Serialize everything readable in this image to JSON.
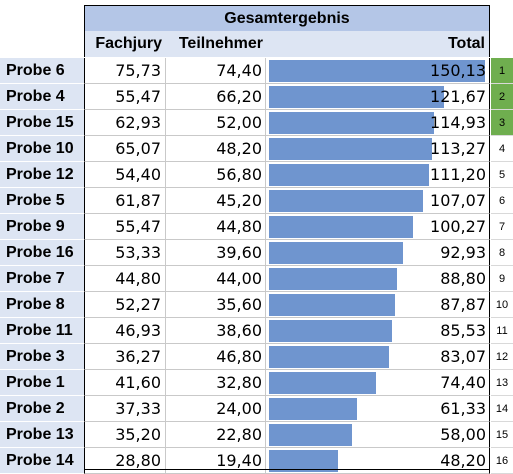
{
  "sheet": {
    "group_header": "Gesamtergebnis",
    "columns": {
      "fachjury": "Fachjury",
      "teilnehmer": "Teilnehmer",
      "total": "Total"
    },
    "max_total": 150.13,
    "colors": {
      "bar": "#6f95cf",
      "header": "#b4c6e7",
      "name_bg": "#dde5f3",
      "top_rank": "#6fae4f"
    },
    "rows": [
      {
        "name": "Probe 6",
        "fachjury": "75,73",
        "teilnehmer": "74,40",
        "total": "150,13",
        "total_value": 150.13,
        "rank": "1"
      },
      {
        "name": "Probe 4",
        "fachjury": "55,47",
        "teilnehmer": "66,20",
        "total": "121,67",
        "total_value": 121.67,
        "rank": "2"
      },
      {
        "name": "Probe 15",
        "fachjury": "62,93",
        "teilnehmer": "52,00",
        "total": "114,93",
        "total_value": 114.93,
        "rank": "3"
      },
      {
        "name": "Probe 10",
        "fachjury": "65,07",
        "teilnehmer": "48,20",
        "total": "113,27",
        "total_value": 113.27,
        "rank": "4"
      },
      {
        "name": "Probe 12",
        "fachjury": "54,40",
        "teilnehmer": "56,80",
        "total": "111,20",
        "total_value": 111.2,
        "rank": "5"
      },
      {
        "name": "Probe 5",
        "fachjury": "61,87",
        "teilnehmer": "45,20",
        "total": "107,07",
        "total_value": 107.07,
        "rank": "6"
      },
      {
        "name": "Probe 9",
        "fachjury": "55,47",
        "teilnehmer": "44,80",
        "total": "100,27",
        "total_value": 100.27,
        "rank": "7"
      },
      {
        "name": "Probe 16",
        "fachjury": "53,33",
        "teilnehmer": "39,60",
        "total": "92,93",
        "total_value": 92.93,
        "rank": "8"
      },
      {
        "name": "Probe 7",
        "fachjury": "44,80",
        "teilnehmer": "44,00",
        "total": "88,80",
        "total_value": 88.8,
        "rank": "9"
      },
      {
        "name": "Probe 8",
        "fachjury": "52,27",
        "teilnehmer": "35,60",
        "total": "87,87",
        "total_value": 87.87,
        "rank": "10"
      },
      {
        "name": "Probe 11",
        "fachjury": "46,93",
        "teilnehmer": "38,60",
        "total": "85,53",
        "total_value": 85.53,
        "rank": "11"
      },
      {
        "name": "Probe 3",
        "fachjury": "36,27",
        "teilnehmer": "46,80",
        "total": "83,07",
        "total_value": 83.07,
        "rank": "12"
      },
      {
        "name": "Probe 1",
        "fachjury": "41,60",
        "teilnehmer": "32,80",
        "total": "74,40",
        "total_value": 74.4,
        "rank": "13"
      },
      {
        "name": "Probe 2",
        "fachjury": "37,33",
        "teilnehmer": "24,00",
        "total": "61,33",
        "total_value": 61.33,
        "rank": "14"
      },
      {
        "name": "Probe 13",
        "fachjury": "35,20",
        "teilnehmer": "22,80",
        "total": "58,00",
        "total_value": 58.0,
        "rank": "15"
      },
      {
        "name": "Probe 14",
        "fachjury": "28,80",
        "teilnehmer": "19,40",
        "total": "48,20",
        "total_value": 48.2,
        "rank": "16"
      }
    ]
  }
}
